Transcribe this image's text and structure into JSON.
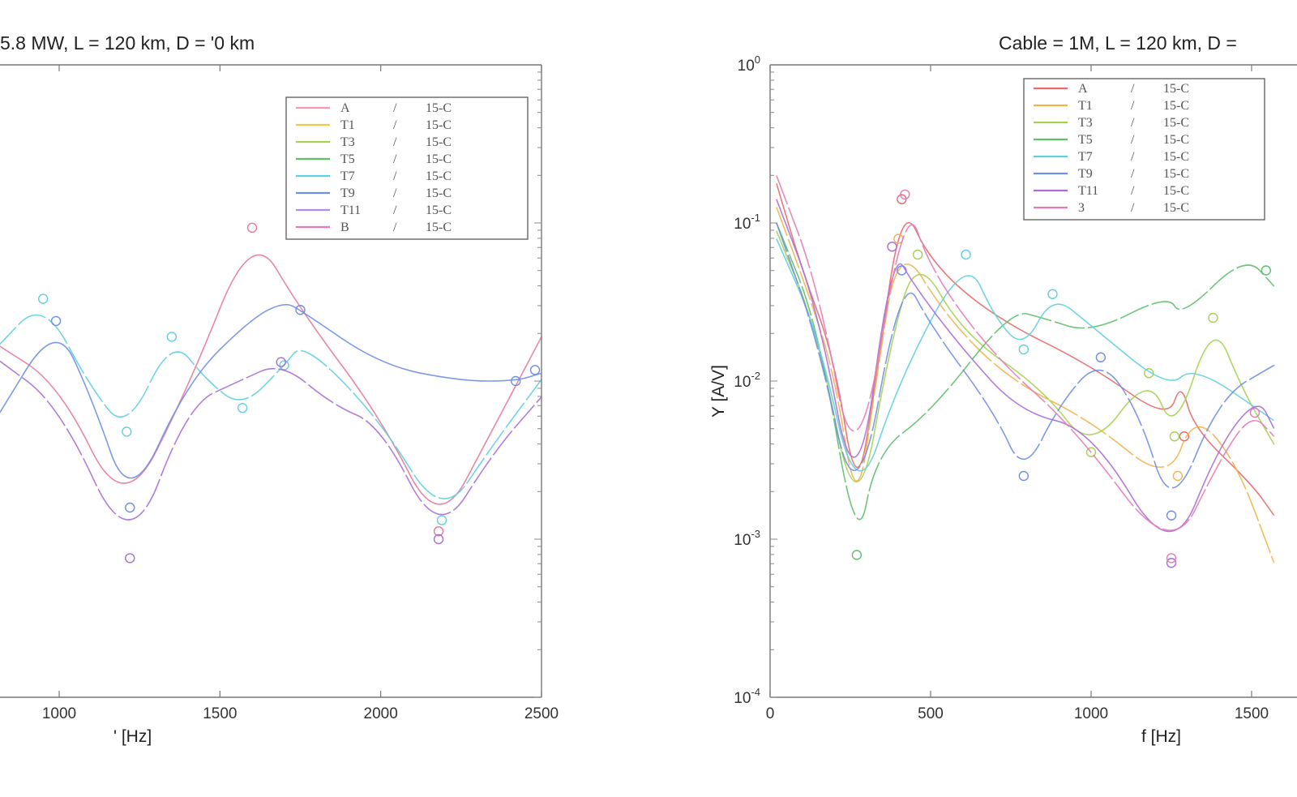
{
  "chart_data": [
    {
      "type": "line",
      "title": "5.8 MW, L = 120 km, D = '0 km",
      "xlabel": "' [Hz]",
      "ylabel": "",
      "xlim": [
        800,
        2500
      ],
      "ylim_log10": [
        -4,
        0
      ],
      "log_y": true,
      "x_ticks": [
        1000,
        1500,
        2000,
        2500
      ],
      "x_tick_labels": [
        "1000",
        "1500",
        "2000",
        "2500"
      ],
      "y_tick_labels": [],
      "grid": false,
      "legend_position": "top-right",
      "legend": [
        {
          "name": "A",
          "mid": "/",
          "tag": "15-C"
        },
        {
          "name": "T1",
          "mid": "/",
          "tag": "15-C"
        },
        {
          "name": "T3",
          "mid": "/",
          "tag": "15-C"
        },
        {
          "name": "T5",
          "mid": "/",
          "tag": "15-C"
        },
        {
          "name": "T7",
          "mid": "/",
          "tag": "15-C"
        },
        {
          "name": "T9",
          "mid": "/",
          "tag": "15-C"
        },
        {
          "name": "T11",
          "mid": "/",
          "tag": "15-C"
        },
        {
          "name": "B",
          "mid": "/",
          "tag": "15-C"
        }
      ],
      "series": [
        {
          "color": "#e8799b",
          "points": [
            [
              800,
              -1.76
            ],
            [
              1000,
              -2.02
            ],
            [
              1200,
              -2.85
            ],
            [
              1400,
              -2.05
            ],
            [
              1600,
              -1.03
            ],
            [
              1750,
              -1.55
            ],
            [
              2000,
              -2.23
            ],
            [
              2180,
              -2.95
            ],
            [
              2350,
              -2.3
            ],
            [
              2500,
              -1.72
            ]
          ],
          "markers": [
            [
              1600,
              -1.03
            ],
            [
              2180,
              -2.95
            ]
          ]
        },
        {
          "color": "#62cfe0",
          "points": [
            [
              800,
              -1.8
            ],
            [
              950,
              -1.48
            ],
            [
              1100,
              -2.05
            ],
            [
              1210,
              -2.32
            ],
            [
              1350,
              -1.72
            ],
            [
              1460,
              -2.0
            ],
            [
              1570,
              -2.17
            ],
            [
              1700,
              -1.9
            ],
            [
              1760,
              -1.75
            ],
            [
              2000,
              -2.25
            ],
            [
              2190,
              -2.88
            ],
            [
              2350,
              -2.4
            ],
            [
              2500,
              -1.99
            ]
          ],
          "markers": [
            [
              950,
              -1.48
            ],
            [
              1210,
              -2.32
            ],
            [
              1350,
              -1.72
            ],
            [
              1570,
              -2.17
            ],
            [
              1700,
              -1.9
            ],
            [
              2190,
              -2.88
            ]
          ]
        },
        {
          "color": "#6f8fe6",
          "points": [
            [
              800,
              -2.25
            ],
            [
              990,
              -1.62
            ],
            [
              1100,
              -2.1
            ],
            [
              1220,
              -2.8
            ],
            [
              1400,
              -2.0
            ],
            [
              1600,
              -1.6
            ],
            [
              1700,
              -1.5
            ],
            [
              1750,
              -1.55
            ],
            [
              2000,
              -1.9
            ],
            [
              2250,
              -2.0
            ],
            [
              2420,
              -2.0
            ],
            [
              2500,
              -1.95
            ]
          ],
          "markers": [
            [
              990,
              -1.62
            ],
            [
              1220,
              -2.8
            ],
            [
              1750,
              -1.55
            ],
            [
              2420,
              -2.0
            ],
            [
              2480,
              -1.93
            ]
          ]
        },
        {
          "color": "#a86fd8",
          "points": [
            [
              800,
              -1.85
            ],
            [
              1000,
              -2.15
            ],
            [
              1220,
              -3.12
            ],
            [
              1400,
              -2.15
            ],
            [
              1560,
              -2.0
            ],
            [
              1690,
              -1.88
            ],
            [
              1850,
              -2.15
            ],
            [
              2000,
              -2.28
            ],
            [
              2180,
              -3.0
            ],
            [
              2350,
              -2.45
            ],
            [
              2500,
              -2.1
            ]
          ],
          "markers": [
            [
              1220,
              -3.12
            ],
            [
              1690,
              -1.88
            ],
            [
              2180,
              -3.0
            ]
          ]
        }
      ]
    },
    {
      "type": "line",
      "title": "Cable = 1M, L = 120 km, D =",
      "xlabel": "f  [Hz]",
      "ylabel": "Y  [A/V]",
      "xlim": [
        0,
        2000
      ],
      "ylim_log10": [
        -4,
        0
      ],
      "log_y": true,
      "x_ticks": [
        0,
        500,
        1000,
        1500
      ],
      "x_tick_labels": [
        "0",
        "500",
        "1000",
        "1500"
      ],
      "y_ticks_log10": [
        -4,
        -3,
        -2,
        -1,
        0
      ],
      "y_tick_labels": [
        "10-4",
        "10-3",
        "10-2",
        "10-1",
        "100"
      ],
      "grid": false,
      "legend_position": "top-right",
      "legend": [
        {
          "name": "A",
          "mid": "/",
          "tag": "15-C"
        },
        {
          "name": "T1",
          "mid": "/",
          "tag": "15-C"
        },
        {
          "name": "T3",
          "mid": "/",
          "tag": "15-C"
        },
        {
          "name": "T5",
          "mid": "/",
          "tag": "15-C"
        },
        {
          "name": "T7",
          "mid": "/",
          "tag": "15-C"
        },
        {
          "name": "T9",
          "mid": "/",
          "tag": "15-C"
        },
        {
          "name": "T11",
          "mid": "/",
          "tag": "15-C"
        },
        {
          "name": "3",
          "mid": "/",
          "tag": "15-C"
        }
      ],
      "series": [
        {
          "color": "#e86a6a",
          "points": [
            [
              20,
              -0.75
            ],
            [
              100,
              -1.3
            ],
            [
              200,
              -1.85
            ],
            [
              270,
              -2.75
            ],
            [
              330,
              -2.0
            ],
            [
              410,
              -0.85
            ],
            [
              500,
              -1.25
            ],
            [
              700,
              -1.6
            ],
            [
              1000,
              -1.9
            ],
            [
              1240,
              -2.25
            ],
            [
              1280,
              -2.0
            ],
            [
              1320,
              -2.3
            ],
            [
              1500,
              -2.65
            ],
            [
              1570,
              -2.85
            ]
          ],
          "markers": [
            [
              410,
              -0.85
            ],
            [
              1290,
              -2.35
            ]
          ]
        },
        {
          "color": "#f0b54a",
          "points": [
            [
              20,
              -0.9
            ],
            [
              120,
              -1.45
            ],
            [
              200,
              -1.95
            ],
            [
              270,
              -2.85
            ],
            [
              330,
              -2.0
            ],
            [
              400,
              -1.1
            ],
            [
              550,
              -1.6
            ],
            [
              750,
              -2.0
            ],
            [
              1000,
              -2.25
            ],
            [
              1240,
              -2.65
            ],
            [
              1320,
              -2.2
            ],
            [
              1450,
              -2.5
            ],
            [
              1570,
              -3.15
            ]
          ],
          "markers": [
            [
              400,
              -1.1
            ],
            [
              1270,
              -2.6
            ]
          ]
        },
        {
          "color": "#a8d050",
          "points": [
            [
              20,
              -1.05
            ],
            [
              150,
              -1.7
            ],
            [
              270,
              -2.95
            ],
            [
              380,
              -1.7
            ],
            [
              460,
              -1.2
            ],
            [
              600,
              -1.7
            ],
            [
              850,
              -2.05
            ],
            [
              1000,
              -2.45
            ],
            [
              1180,
              -1.95
            ],
            [
              1260,
              -2.35
            ],
            [
              1380,
              -1.6
            ],
            [
              1470,
              -2.05
            ],
            [
              1570,
              -2.4
            ]
          ],
          "markers": [
            [
              460,
              -1.2
            ],
            [
              1000,
              -2.45
            ],
            [
              1180,
              -1.95
            ],
            [
              1260,
              -2.35
            ],
            [
              1380,
              -1.6
            ]
          ]
        },
        {
          "color": "#5fbf6a",
          "points": [
            [
              20,
              -1.0
            ],
            [
              150,
              -1.65
            ],
            [
              270,
              -3.1
            ],
            [
              330,
              -2.45
            ],
            [
              500,
              -2.2
            ],
            [
              750,
              -1.55
            ],
            [
              850,
              -1.6
            ],
            [
              1000,
              -1.7
            ],
            [
              1240,
              -1.45
            ],
            [
              1280,
              -1.6
            ],
            [
              1480,
              -1.2
            ],
            [
              1570,
              -1.4
            ]
          ],
          "markers": [
            [
              270,
              -3.1
            ],
            [
              1545,
              -1.3
            ]
          ]
        },
        {
          "color": "#62cfe0",
          "points": [
            [
              20,
              -1.1
            ],
            [
              150,
              -1.7
            ],
            [
              270,
              -2.8
            ],
            [
              400,
              -2.0
            ],
            [
              610,
              -1.2
            ],
            [
              700,
              -1.6
            ],
            [
              790,
              -1.8
            ],
            [
              880,
              -1.45
            ],
            [
              1000,
              -1.65
            ],
            [
              1240,
              -2.05
            ],
            [
              1320,
              -1.9
            ],
            [
              1570,
              -2.25
            ]
          ],
          "markers": [
            [
              610,
              -1.2
            ],
            [
              790,
              -1.8
            ],
            [
              880,
              -1.45
            ]
          ]
        },
        {
          "color": "#6f8fe6",
          "points": [
            [
              20,
              -1.0
            ],
            [
              150,
              -1.75
            ],
            [
              270,
              -2.9
            ],
            [
              410,
              -1.3
            ],
            [
              500,
              -1.65
            ],
            [
              700,
              -2.2
            ],
            [
              790,
              -2.6
            ],
            [
              900,
              -2.15
            ],
            [
              1030,
              -1.85
            ],
            [
              1150,
              -2.2
            ],
            [
              1250,
              -2.85
            ],
            [
              1400,
              -2.1
            ],
            [
              1570,
              -1.9
            ]
          ],
          "markers": [
            [
              410,
              -1.3
            ],
            [
              790,
              -2.6
            ],
            [
              1030,
              -1.85
            ],
            [
              1250,
              -2.85
            ]
          ]
        },
        {
          "color": "#a86fd8",
          "points": [
            [
              20,
              -0.85
            ],
            [
              150,
              -1.55
            ],
            [
              270,
              -2.85
            ],
            [
              380,
              -1.15
            ],
            [
              450,
              -1.4
            ],
            [
              600,
              -1.8
            ],
            [
              780,
              -2.2
            ],
            [
              1000,
              -2.3
            ],
            [
              1250,
              -3.15
            ],
            [
              1400,
              -2.4
            ],
            [
              1520,
              -2.1
            ],
            [
              1570,
              -2.3
            ]
          ],
          "markers": [
            [
              380,
              -1.15
            ],
            [
              1250,
              -3.15
            ]
          ]
        },
        {
          "color": "#e87ab8",
          "points": [
            [
              20,
              -0.7
            ],
            [
              150,
              -1.4
            ],
            [
              270,
              -2.7
            ],
            [
              420,
              -0.82
            ],
            [
              500,
              -1.3
            ],
            [
              700,
              -1.85
            ],
            [
              950,
              -2.3
            ],
            [
              1250,
              -3.12
            ],
            [
              1400,
              -2.5
            ],
            [
              1500,
              -2.2
            ],
            [
              1570,
              -2.35
            ]
          ],
          "markers": [
            [
              420,
              -0.82
            ],
            [
              1250,
              -3.12
            ],
            [
              1510,
              -2.2
            ]
          ]
        }
      ]
    }
  ]
}
